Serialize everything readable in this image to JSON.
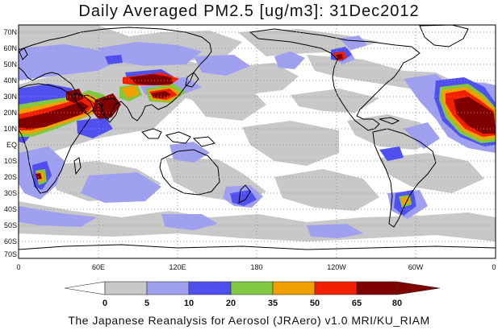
{
  "title": "Daily Averaged PM2.5 [ug/m3]: 31Dec2012",
  "footer": "The Japanese Reanalysis for Aerosol (JRAero) v1.0 MRI/KU_RIAM",
  "axes": {
    "lat_labels": [
      "70N",
      "60N",
      "50N",
      "40N",
      "30N",
      "20N",
      "10N",
      "EQ",
      "10S",
      "20S",
      "30S",
      "40S",
      "50S",
      "60S",
      "70S"
    ],
    "lon_labels": [
      "0",
      "60E",
      "120E",
      "180",
      "120W",
      "60W",
      "0"
    ]
  },
  "colorbar": {
    "ticks": [
      "0",
      "5",
      "10",
      "20",
      "35",
      "50",
      "65",
      "80"
    ],
    "colors": [
      "#ffffff",
      "#c8c8c8",
      "#a0a0f0",
      "#5050f0",
      "#80c840",
      "#f0a000",
      "#f02000",
      "#800000"
    ]
  },
  "fill_colors": {
    "bin_5_10": "#c8c8c8",
    "bin_10_20": "#a0a0f0",
    "bin_20_35": "#5050f0",
    "bin_35_50": "#80c840",
    "bin_50_65": "#f0a000",
    "bin_65_80": "#f02000",
    "bin_80_plus": "#800000"
  }
}
